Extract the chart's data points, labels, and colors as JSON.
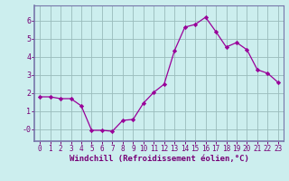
{
  "x": [
    0,
    1,
    2,
    3,
    4,
    5,
    6,
    7,
    8,
    9,
    10,
    11,
    12,
    13,
    14,
    15,
    16,
    17,
    18,
    19,
    20,
    21,
    22,
    23
  ],
  "y": [
    1.8,
    1.8,
    1.7,
    1.7,
    1.3,
    -0.05,
    -0.05,
    -0.1,
    0.5,
    0.55,
    1.45,
    2.05,
    2.5,
    4.35,
    5.65,
    5.8,
    6.2,
    5.4,
    4.55,
    4.8,
    4.4,
    3.3,
    3.1,
    2.6
  ],
  "line_color": "#990099",
  "marker": "D",
  "marker_size": 2.2,
  "bg_color": "#cceeee",
  "grid_color": "#99bbbb",
  "xlabel": "Windchill (Refroidissement éolien,°C)",
  "xlim": [
    -0.5,
    23.5
  ],
  "ylim": [
    -0.65,
    6.85
  ],
  "yticks": [
    0,
    1,
    2,
    3,
    4,
    5,
    6
  ],
  "ytick_labels": [
    "-0",
    "1",
    "2",
    "3",
    "4",
    "5",
    "6"
  ],
  "xticks": [
    0,
    1,
    2,
    3,
    4,
    5,
    6,
    7,
    8,
    9,
    10,
    11,
    12,
    13,
    14,
    15,
    16,
    17,
    18,
    19,
    20,
    21,
    22,
    23
  ],
  "spine_color": "#7777aa",
  "label_color": "#770077",
  "tick_color": "#770077",
  "xlabel_fontsize": 6.5,
  "tick_fontsize": 5.5
}
